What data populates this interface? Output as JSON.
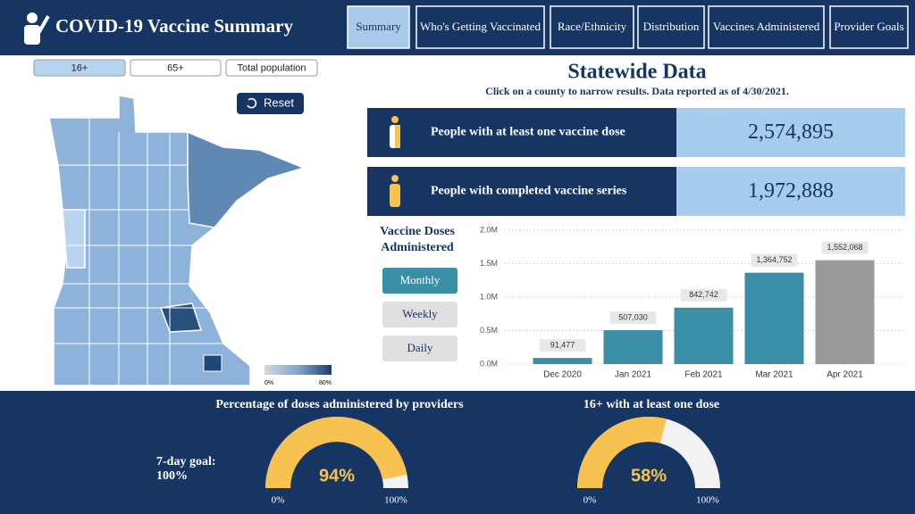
{
  "header": {
    "title": "COVID-19 Vaccine Summary"
  },
  "nav": [
    "Summary",
    "Who's Getting Vaccinated",
    "Race/Ethnicity",
    "Distribution",
    "Vaccines Administered",
    "Provider Goals"
  ],
  "filters": [
    "16+",
    "65+",
    "Total population"
  ],
  "map": {
    "reset": "Reset",
    "legend": [
      "0%",
      "80%"
    ]
  },
  "statewide": {
    "title": "Statewide Data",
    "subtitle": "Click on a county to narrow results. Data reported as of 4/30/2021.",
    "stats": [
      {
        "label": "People with at least one vaccine dose",
        "value": "2,574,895"
      },
      {
        "label": "People with completed vaccine series",
        "value": "1,972,888"
      }
    ]
  },
  "doses": {
    "title": [
      "Vaccine Doses",
      "Administered"
    ],
    "buttons": [
      "Monthly",
      "Weekly",
      "Daily"
    ]
  },
  "chart_data": [
    {
      "type": "bar",
      "categories": [
        "Dec 2020",
        "Jan 2021",
        "Feb 2021",
        "Mar 2021",
        "Apr 2021"
      ],
      "values": [
        91477,
        507030,
        842742,
        1364752,
        1552068
      ],
      "value_labels": [
        "91,477",
        "507,030",
        "842,742",
        "1,364,752",
        "1,552,068"
      ],
      "colors": [
        "#3a8ea6",
        "#3a8ea6",
        "#3a8ea6",
        "#3a8ea6",
        "#9a9a9c"
      ],
      "ylim": [
        0,
        2000000
      ],
      "yticks": [
        {
          "value": 0,
          "label": "0.0M"
        },
        {
          "value": 500000,
          "label": "0.5M"
        },
        {
          "value": 1000000,
          "label": "1.0M"
        },
        {
          "value": 1500000,
          "label": "1.5M"
        },
        {
          "value": 2000000,
          "label": "2.0M"
        }
      ],
      "grid": true
    },
    {
      "type": "gauge",
      "title": "Percentage of doses administered by providers",
      "annotation": [
        "7-day goal:",
        "100%"
      ],
      "value": 94,
      "value_label": "94%",
      "color": "#f7c24f",
      "ylim": [
        0,
        100
      ],
      "ticks": [
        {
          "value": 0,
          "label": "0%"
        },
        {
          "value": 100,
          "label": "100%"
        }
      ]
    },
    {
      "type": "gauge",
      "title": "16+ with at least one dose",
      "value": 58,
      "value_label": "58%",
      "color": "#f7c24f",
      "ylim": [
        0,
        100
      ],
      "ticks": [
        {
          "value": 0,
          "label": "0%"
        },
        {
          "value": 100,
          "label": "100%"
        }
      ]
    }
  ]
}
